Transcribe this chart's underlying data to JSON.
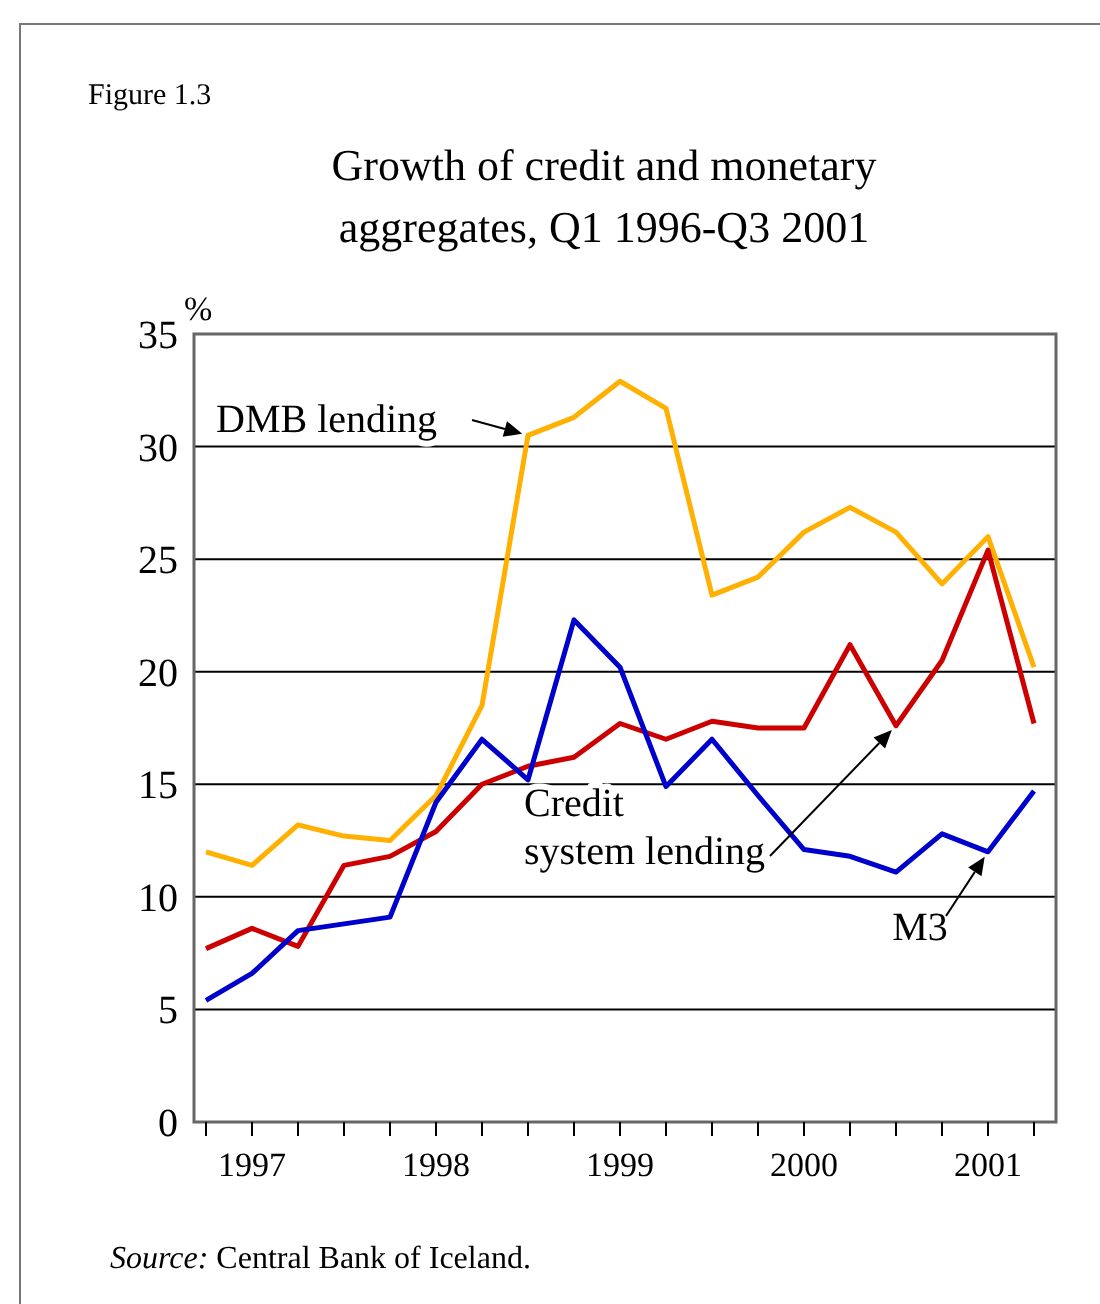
{
  "chart_data": {
    "type": "line",
    "title": "Growth of credit and monetary aggregates, Q1 1996-Q3 2001",
    "ylabel": "%",
    "annotations": [
      "Figure 1.3",
      "Source: Central Bank of Iceland."
    ],
    "categories": [
      null,
      "1997",
      null,
      null,
      null,
      "1998",
      null,
      null,
      null,
      "1999",
      null,
      null,
      null,
      "2000",
      null,
      null,
      null,
      "2001",
      null
    ],
    "series": [
      {
        "name": "DMB lending",
        "color": "#ffb000",
        "values": [
          12.0,
          11.4,
          13.2,
          12.7,
          12.5,
          14.5,
          18.5,
          30.5,
          31.3,
          32.9,
          31.7,
          23.4,
          24.2,
          26.2,
          27.3,
          26.2,
          23.9,
          26.0,
          20.2
        ]
      },
      {
        "name": "Credit system lending",
        "color": "#cc0000",
        "values": [
          7.7,
          8.6,
          7.8,
          11.4,
          11.8,
          12.9,
          15.0,
          15.8,
          16.2,
          17.7,
          17.0,
          17.8,
          17.5,
          17.5,
          21.2,
          17.6,
          20.5,
          25.4,
          17.7
        ]
      },
      {
        "name": "M3",
        "color": "#0000cc",
        "values": [
          5.4,
          6.6,
          8.5,
          8.8,
          9.1,
          14.2,
          17.0,
          15.2,
          22.3,
          20.2,
          14.9,
          17.0,
          14.5,
          12.1,
          11.8,
          11.1,
          12.8,
          12.0,
          14.7
        ]
      }
    ],
    "ylim": [
      0,
      35
    ],
    "yticks": [
      0,
      5,
      10,
      15,
      20,
      25,
      30,
      35
    ],
    "grid": "y",
    "marker": "none",
    "line_style": "solid"
  }
}
